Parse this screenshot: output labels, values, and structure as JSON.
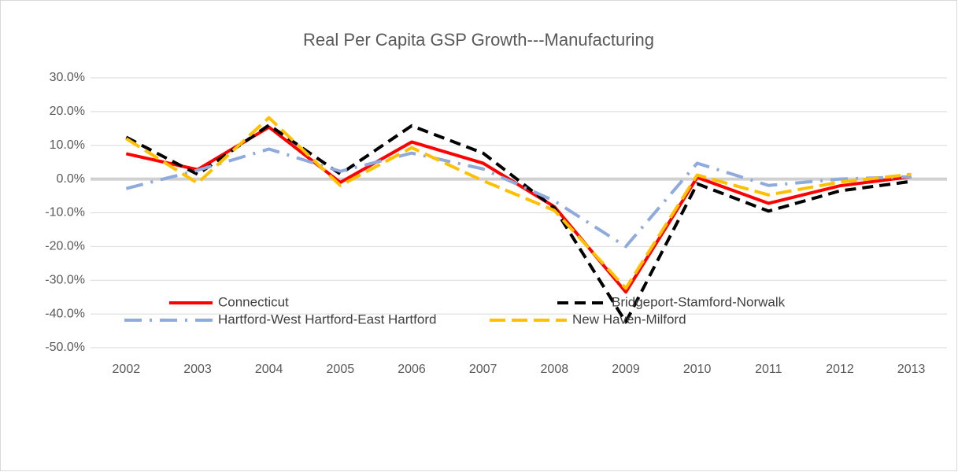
{
  "chart_data": {
    "type": "line",
    "title": "Real Per Capita GSP Growth---Manufacturing",
    "categories": [
      "2002",
      "2003",
      "2004",
      "2005",
      "2006",
      "2007",
      "2008",
      "2009",
      "2010",
      "2011",
      "2012",
      "2013"
    ],
    "series": [
      {
        "name": "Connecticut",
        "color": "#ff0000",
        "values": [
          7.5,
          2.8,
          15.4,
          -1.0,
          11.0,
          4.7,
          -8.2,
          -33.5,
          0.5,
          -7.2,
          -2.0,
          0.7
        ]
      },
      {
        "name": "Bridgeport-Stamford-Norwalk",
        "color": "#000000",
        "values": [
          12.4,
          1.4,
          16.0,
          1.5,
          15.8,
          7.7,
          -8.6,
          -42.4,
          -1.4,
          -9.5,
          -3.5,
          -0.7
        ]
      },
      {
        "name": "Hartford-West Hartford-East Hartford",
        "color": "#8faadc",
        "values": [
          -2.8,
          2.6,
          8.9,
          2.3,
          7.7,
          3.0,
          -6.5,
          -20.0,
          4.7,
          -1.9,
          0.0,
          0.7
        ]
      },
      {
        "name": "New Haven-Milford",
        "color": "#ffc000",
        "values": [
          12.0,
          -1.2,
          18.2,
          -1.9,
          9.3,
          -0.5,
          -9.3,
          -32.4,
          1.2,
          -4.7,
          -0.9,
          1.4
        ]
      }
    ],
    "ylim": [
      -50,
      30
    ],
    "yticks": [
      {
        "value": -50,
        "label": "-50.0%"
      },
      {
        "value": -40,
        "label": "-40.0%"
      },
      {
        "value": -30,
        "label": "-30.0%"
      },
      {
        "value": -20,
        "label": "-20.0%"
      },
      {
        "value": -10,
        "label": "-10.0%"
      },
      {
        "value": 0,
        "label": "0.0%"
      },
      {
        "value": 10,
        "label": "10.0%"
      },
      {
        "value": 20,
        "label": "20.0%"
      },
      {
        "value": 30,
        "label": "30.0%"
      }
    ],
    "grid": true
  }
}
